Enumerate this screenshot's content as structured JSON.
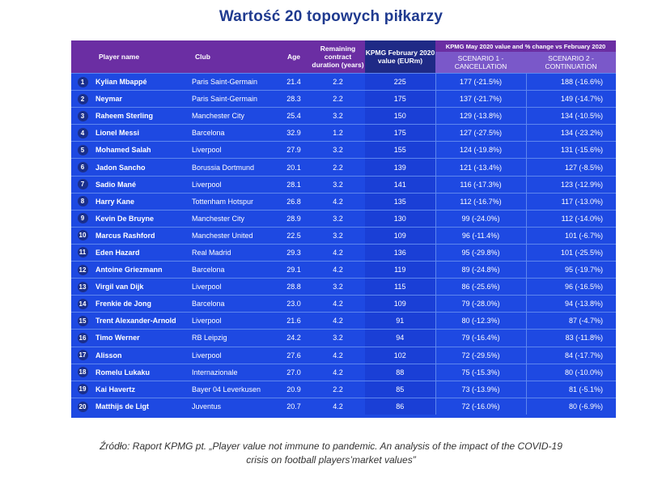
{
  "title": "Wartość 20 topowych piłkarzy",
  "table": {
    "headers": {
      "player": "Player name",
      "club": "Club",
      "age": "Age",
      "contract": "Remaining contract duration (years)",
      "feb_value": "KPMG February 2020 value (EURm)",
      "may_super": "KPMG May 2020 value and % change vs February 2020",
      "scenario1": "SCENARIO 1 - CANCELLATION",
      "scenario2": "SCENARIO 2 - CONTINUATION"
    },
    "rows": [
      {
        "rank": "1",
        "name": "Kylian Mbappé",
        "club": "Paris Saint-Germain",
        "age": "21.4",
        "contract": "2.2",
        "feb": "225",
        "s1": "177 (-21.5%)",
        "s2": "188 (-16.6%)"
      },
      {
        "rank": "2",
        "name": "Neymar",
        "club": "Paris Saint-Germain",
        "age": "28.3",
        "contract": "2.2",
        "feb": "175",
        "s1": "137 (-21.7%)",
        "s2": "149 (-14.7%)"
      },
      {
        "rank": "3",
        "name": "Raheem Sterling",
        "club": "Manchester City",
        "age": "25.4",
        "contract": "3.2",
        "feb": "150",
        "s1": "129 (-13.8%)",
        "s2": "134 (-10.5%)"
      },
      {
        "rank": "4",
        "name": "Lionel Messi",
        "club": "Barcelona",
        "age": "32.9",
        "contract": "1.2",
        "feb": "175",
        "s1": "127 (-27.5%)",
        "s2": "134 (-23.2%)"
      },
      {
        "rank": "5",
        "name": "Mohamed Salah",
        "club": "Liverpool",
        "age": "27.9",
        "contract": "3.2",
        "feb": "155",
        "s1": "124 (-19.8%)",
        "s2": "131 (-15.6%)"
      },
      {
        "rank": "6",
        "name": "Jadon Sancho",
        "club": "Borussia Dortmund",
        "age": "20.1",
        "contract": "2.2",
        "feb": "139",
        "s1": "121 (-13.4%)",
        "s2": "127 (-8.5%)"
      },
      {
        "rank": "7",
        "name": "Sadio Mané",
        "club": "Liverpool",
        "age": "28.1",
        "contract": "3.2",
        "feb": "141",
        "s1": "116 (-17.3%)",
        "s2": "123 (-12.9%)"
      },
      {
        "rank": "8",
        "name": "Harry Kane",
        "club": "Tottenham Hotspur",
        "age": "26.8",
        "contract": "4.2",
        "feb": "135",
        "s1": "112 (-16.7%)",
        "s2": "117 (-13.0%)"
      },
      {
        "rank": "9",
        "name": "Kevin De Bruyne",
        "club": "Manchester City",
        "age": "28.9",
        "contract": "3.2",
        "feb": "130",
        "s1": "99 (-24.0%)",
        "s2": "112 (-14.0%)"
      },
      {
        "rank": "10",
        "name": "Marcus Rashford",
        "club": "Manchester United",
        "age": "22.5",
        "contract": "3.2",
        "feb": "109",
        "s1": "96 (-11.4%)",
        "s2": "101 (-6.7%)"
      },
      {
        "rank": "11",
        "name": "Eden Hazard",
        "club": "Real Madrid",
        "age": "29.3",
        "contract": "4.2",
        "feb": "136",
        "s1": "95 (-29.8%)",
        "s2": "101 (-25.5%)"
      },
      {
        "rank": "12",
        "name": "Antoine Griezmann",
        "club": "Barcelona",
        "age": "29.1",
        "contract": "4.2",
        "feb": "119",
        "s1": "89 (-24.8%)",
        "s2": "95 (-19.7%)"
      },
      {
        "rank": "13",
        "name": "Virgil van Dijk",
        "club": "Liverpool",
        "age": "28.8",
        "contract": "3.2",
        "feb": "115",
        "s1": "86 (-25.6%)",
        "s2": "96 (-16.5%)"
      },
      {
        "rank": "14",
        "name": "Frenkie de Jong",
        "club": "Barcelona",
        "age": "23.0",
        "contract": "4.2",
        "feb": "109",
        "s1": "79 (-28.0%)",
        "s2": "94 (-13.8%)"
      },
      {
        "rank": "15",
        "name": "Trent Alexander-Arnold",
        "club": "Liverpool",
        "age": "21.6",
        "contract": "4.2",
        "feb": "91",
        "s1": "80 (-12.3%)",
        "s2": "87 (-4.7%)"
      },
      {
        "rank": "16",
        "name": "Timo Werner",
        "club": "RB Leipzig",
        "age": "24.2",
        "contract": "3.2",
        "feb": "94",
        "s1": "79 (-16.4%)",
        "s2": "83 (-11.8%)"
      },
      {
        "rank": "17",
        "name": "Alisson",
        "club": "Liverpool",
        "age": "27.6",
        "contract": "4.2",
        "feb": "102",
        "s1": "72 (-29.5%)",
        "s2": "84 (-17.7%)"
      },
      {
        "rank": "18",
        "name": "Romelu Lukaku",
        "club": "Internazionale",
        "age": "27.0",
        "contract": "4.2",
        "feb": "88",
        "s1": "75 (-15.3%)",
        "s2": "80 (-10.0%)"
      },
      {
        "rank": "19",
        "name": "Kai Havertz",
        "club": "Bayer 04 Leverkusen",
        "age": "20.9",
        "contract": "2.2",
        "feb": "85",
        "s1": "73 (-13.9%)",
        "s2": "81 (-5.1%)"
      },
      {
        "rank": "20",
        "name": "Matthijs de Ligt",
        "club": "Juventus",
        "age": "20.7",
        "contract": "4.2",
        "feb": "86",
        "s1": "72 (-16.0%)",
        "s2": "80 (-6.9%)"
      }
    ]
  },
  "source": {
    "line1": "Źródło: Raport KPMG pt. „Player value not immune to pandemic. An analysis of the impact of the COVID-19",
    "line2": "crisis on football players’market values”"
  },
  "colors": {
    "title": "#1f3a8f",
    "table_body": "#1e49e2",
    "header_purple": "#6b2ea3",
    "header_navy": "#1f2a86",
    "scenario_header": "#7a58c9",
    "rank_badge": "#1a2f8c"
  }
}
